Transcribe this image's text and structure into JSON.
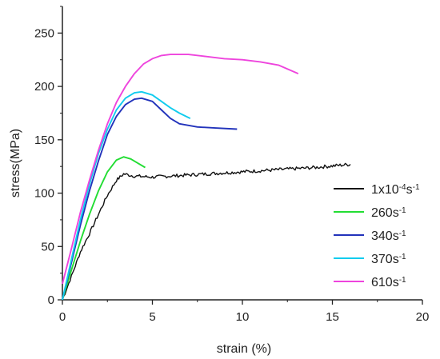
{
  "chart_data": {
    "type": "line",
    "title": "",
    "xlabel": "strain (%)",
    "ylabel": "stress(MPa)",
    "xlim": [
      0,
      20
    ],
    "ylim": [
      0,
      275
    ],
    "x_ticks": [
      0,
      5,
      10,
      15,
      20
    ],
    "y_ticks": [
      0,
      50,
      100,
      150,
      200,
      250
    ],
    "grid": false,
    "legend_position": "right",
    "series": [
      {
        "name": "1x10-4s-1",
        "legend": {
          "base": "1x10",
          "exp1": "-4",
          "mid": "s",
          "exp2": "-1"
        },
        "color": "#111111",
        "noisy": true,
        "points": [
          [
            0,
            0
          ],
          [
            0.5,
            22
          ],
          [
            1,
            45
          ],
          [
            1.5,
            62
          ],
          [
            2,
            80
          ],
          [
            2.5,
            98
          ],
          [
            3,
            112
          ],
          [
            3.4,
            118
          ],
          [
            4,
            116
          ],
          [
            5,
            115
          ],
          [
            6,
            116
          ],
          [
            8,
            118
          ],
          [
            10,
            120
          ],
          [
            12,
            122
          ],
          [
            14,
            124
          ],
          [
            16,
            127
          ]
        ]
      },
      {
        "name": "260s-1",
        "legend": {
          "base": "260",
          "exp1": "",
          "mid": "s",
          "exp2": "-1"
        },
        "color": "#22dd33",
        "noisy": false,
        "points": [
          [
            0,
            0
          ],
          [
            0.5,
            28
          ],
          [
            1,
            55
          ],
          [
            1.5,
            80
          ],
          [
            2,
            102
          ],
          [
            2.5,
            120
          ],
          [
            3,
            131
          ],
          [
            3.4,
            134
          ],
          [
            3.8,
            132
          ],
          [
            4.2,
            128
          ],
          [
            4.6,
            124
          ]
        ]
      },
      {
        "name": "340s-1",
        "legend": {
          "base": "340",
          "exp1": "",
          "mid": "s",
          "exp2": "-1"
        },
        "color": "#2233bb",
        "noisy": false,
        "points": [
          [
            0,
            0
          ],
          [
            0.5,
            35
          ],
          [
            1,
            70
          ],
          [
            1.5,
            102
          ],
          [
            2,
            130
          ],
          [
            2.5,
            155
          ],
          [
            3,
            172
          ],
          [
            3.5,
            183
          ],
          [
            4,
            188
          ],
          [
            4.4,
            189
          ],
          [
            5,
            186
          ],
          [
            5.5,
            178
          ],
          [
            6,
            170
          ],
          [
            6.5,
            165
          ],
          [
            7.5,
            162
          ],
          [
            8.5,
            161
          ],
          [
            9.7,
            160
          ]
        ]
      },
      {
        "name": "370s-1",
        "legend": {
          "base": "370",
          "exp1": "",
          "mid": "s",
          "exp2": "-1"
        },
        "color": "#11ccee",
        "noisy": false,
        "points": [
          [
            0,
            0
          ],
          [
            0.5,
            38
          ],
          [
            1,
            75
          ],
          [
            1.5,
            108
          ],
          [
            2,
            137
          ],
          [
            2.5,
            160
          ],
          [
            3,
            178
          ],
          [
            3.5,
            189
          ],
          [
            4,
            194
          ],
          [
            4.4,
            195
          ],
          [
            5,
            192
          ],
          [
            5.5,
            186
          ],
          [
            6,
            180
          ],
          [
            6.5,
            175
          ],
          [
            7.1,
            170
          ]
        ]
      },
      {
        "name": "610s-1",
        "legend": {
          "base": "610",
          "exp1": "",
          "mid": "s",
          "exp2": "-1"
        },
        "color": "#ee44dd",
        "noisy": false,
        "points": [
          [
            0,
            15
          ],
          [
            0.5,
            48
          ],
          [
            1,
            82
          ],
          [
            1.5,
            112
          ],
          [
            2,
            140
          ],
          [
            2.5,
            165
          ],
          [
            3,
            185
          ],
          [
            3.5,
            200
          ],
          [
            4,
            212
          ],
          [
            4.5,
            221
          ],
          [
            5,
            226
          ],
          [
            5.5,
            229
          ],
          [
            6,
            230
          ],
          [
            7,
            230
          ],
          [
            8,
            228
          ],
          [
            9,
            226
          ],
          [
            10,
            225
          ],
          [
            11,
            223
          ],
          [
            12,
            220
          ],
          [
            13.1,
            212
          ]
        ]
      }
    ]
  }
}
